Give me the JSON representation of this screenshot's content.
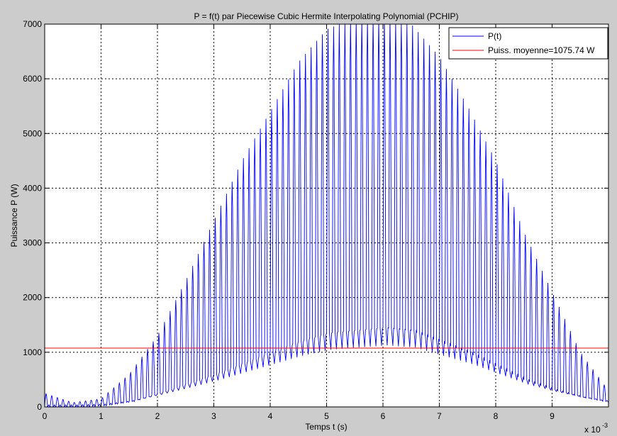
{
  "chart_data": {
    "type": "line",
    "title": "P = f(t) par Piecewise Cubic Hermite Interpolating Polynomial (PCHIP)",
    "xlabel": "Temps t (s)",
    "ylabel": "Puissance P (W)",
    "x_multiplier_base": "x 10",
    "x_multiplier_exponent": "-3",
    "xlim": [
      0,
      10
    ],
    "ylim": [
      0,
      7000
    ],
    "x_ticks": [
      0,
      1,
      2,
      3,
      4,
      5,
      6,
      7,
      8,
      9
    ],
    "y_ticks": [
      0,
      1000,
      2000,
      3000,
      4000,
      5000,
      6000,
      7000
    ],
    "grid": true,
    "legend_location": "top-right",
    "series": [
      {
        "name": "P(t)",
        "color": "#0000ff",
        "kind": "oscillating",
        "pulse_period": 0.1,
        "pulse_width": 0.05,
        "peak_envelope": {
          "x": [
            0,
            0.5,
            1.0,
            1.5,
            2.0,
            2.5,
            3.0,
            3.5,
            4.0,
            4.5,
            5.0,
            5.5,
            6.0,
            6.5,
            7.0,
            7.5,
            8.0,
            8.5,
            9.0,
            9.5,
            10.0
          ],
          "y": [
            250,
            80,
            150,
            600,
            1300,
            2300,
            3400,
            4500,
            5400,
            6300,
            6900,
            7100,
            7100,
            7000,
            6400,
            5500,
            4500,
            3200,
            2100,
            1000,
            300
          ]
        },
        "trough_envelope": {
          "x": [
            0,
            0.5,
            1.0,
            1.5,
            2.0,
            2.5,
            3.0,
            3.5,
            4.0,
            4.5,
            5.0,
            5.5,
            6.0,
            6.5,
            7.0,
            7.5,
            8.0,
            8.5,
            9.0,
            9.5,
            10.0
          ],
          "y": [
            0,
            0,
            20,
            100,
            250,
            420,
            600,
            800,
            1000,
            1200,
            1350,
            1400,
            1450,
            1400,
            1200,
            1000,
            750,
            500,
            320,
            180,
            80
          ]
        }
      },
      {
        "name": "Puiss. moyenne=1075.74 W",
        "color": "#ff0000",
        "kind": "constant",
        "value": 1075.74
      }
    ]
  }
}
